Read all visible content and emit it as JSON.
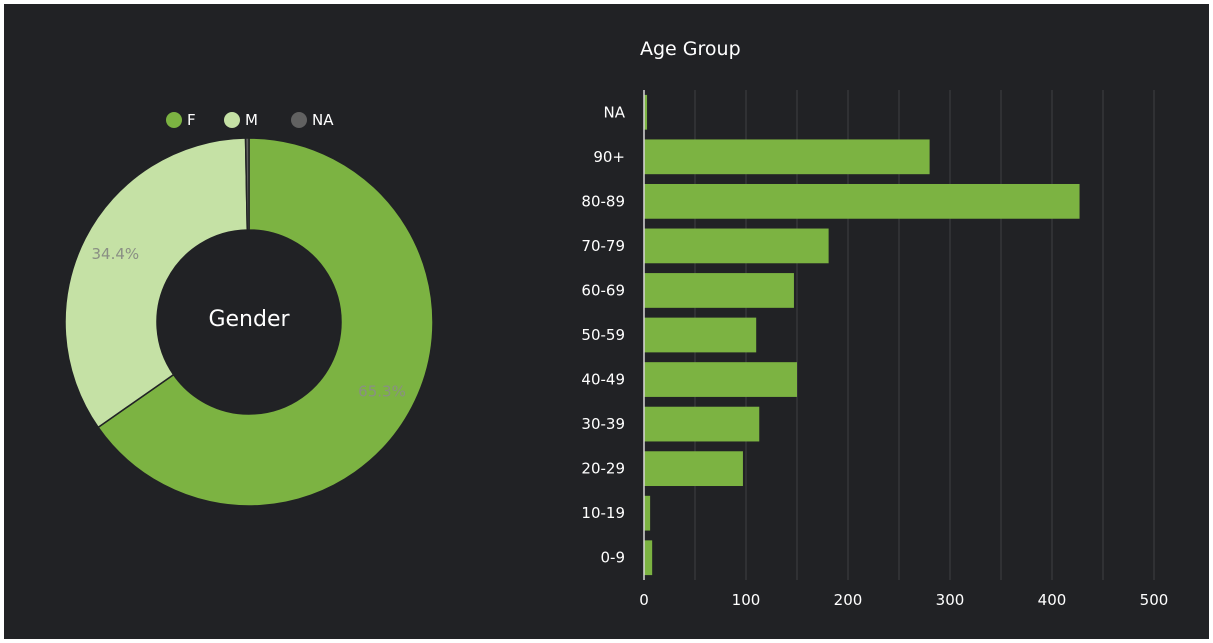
{
  "chart_data": [
    {
      "type": "pie",
      "subtype": "donut",
      "center_label": "Gender",
      "legend_position": "top",
      "slices": [
        {
          "name": "F",
          "percent": 65.3,
          "label": "65.3%",
          "color": "#7cb342"
        },
        {
          "name": "M",
          "percent": 34.4,
          "label": "34.4%",
          "color": "#c5e1a5"
        },
        {
          "name": "NA",
          "percent": 0.3,
          "label": "",
          "color": "#616161"
        }
      ]
    },
    {
      "type": "bar",
      "orientation": "horizontal",
      "title": "Age Group",
      "categories": [
        "NA",
        "90+",
        "80-89",
        "70-79",
        "60-69",
        "50-59",
        "40-49",
        "30-39",
        "20-29",
        "10-19",
        "0-9"
      ],
      "values": [
        3,
        280,
        427,
        181,
        147,
        110,
        150,
        113,
        97,
        6,
        8
      ],
      "xlim": [
        0,
        500
      ],
      "xticks": [
        0,
        100,
        200,
        300,
        400,
        500
      ],
      "grid": true,
      "bar_color": "#7cb342"
    }
  ],
  "colors": {
    "background": "#212225",
    "grid": "#3e4044",
    "text": "#ffffff",
    "percent_label": "#8a8f84"
  }
}
